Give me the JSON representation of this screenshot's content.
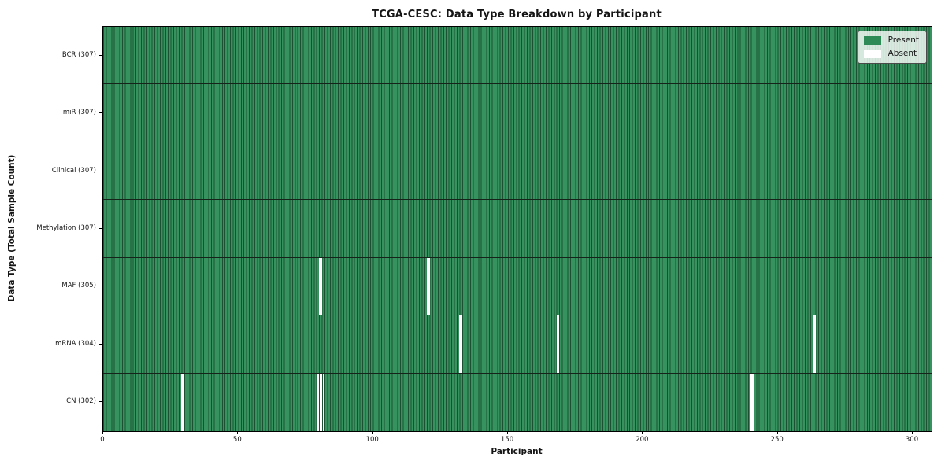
{
  "chart_data": {
    "type": "heatmap",
    "title": "TCGA-CESC: Data Type Breakdown by Participant",
    "xlabel": "Participant",
    "ylabel": "Data Type (Total Sample Count)",
    "n_participants": 307,
    "x_ticks": [
      0,
      50,
      100,
      150,
      200,
      250,
      300
    ],
    "xlim": [
      0,
      307
    ],
    "grid": false,
    "legend_position": "upper right",
    "legend": [
      {
        "label": "Present",
        "color": "#2e8b57"
      },
      {
        "label": "Absent",
        "color": "#ffffff"
      }
    ],
    "rows": [
      {
        "label": "BCR (307)",
        "data_type": "BCR",
        "count": 307,
        "absent_participants": []
      },
      {
        "label": "miR (307)",
        "data_type": "miR",
        "count": 307,
        "absent_participants": []
      },
      {
        "label": "Clinical (307)",
        "data_type": "Clinical",
        "count": 307,
        "absent_participants": []
      },
      {
        "label": "Methylation (307)",
        "data_type": "Methylation",
        "count": 307,
        "absent_participants": []
      },
      {
        "label": "MAF (305)",
        "data_type": "MAF",
        "count": 305,
        "absent_participants": [
          80,
          120
        ]
      },
      {
        "label": "mRNA (304)",
        "data_type": "mRNA",
        "count": 304,
        "absent_participants": [
          132,
          168,
          263
        ]
      },
      {
        "label": "CN (302)",
        "data_type": "CN",
        "count": 302,
        "absent_participants": [
          29,
          79,
          80,
          81,
          240
        ]
      }
    ],
    "colors": {
      "present_fill": "#36935f",
      "cell_edge": "#1b5132",
      "row_divider": "#15231a",
      "absent_fill": "#ffffff",
      "axes_border": "#000000",
      "text": "#151515"
    }
  }
}
